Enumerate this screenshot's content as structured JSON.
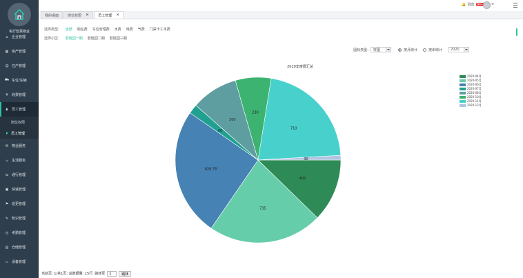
{
  "brand": {
    "title": "宅行智慧物业"
  },
  "nav": [
    {
      "label": "企业管理",
      "icon": "home-icon"
    },
    {
      "label": "房产管理",
      "icon": "building-icon"
    },
    {
      "label": "住户管理",
      "icon": "people-icon"
    },
    {
      "label": "车位/车辆",
      "icon": "car-icon"
    },
    {
      "label": "收费管理",
      "icon": "money-icon"
    },
    {
      "label": "员工管理",
      "icon": "user-icon",
      "active": true
    },
    {
      "label": "物业服务",
      "icon": "service-icon"
    },
    {
      "label": "生活服务",
      "icon": "life-icon"
    },
    {
      "label": "通行管理",
      "icon": "gate-icon"
    },
    {
      "label": "快递管理",
      "icon": "package-icon"
    },
    {
      "label": "巡更管理",
      "icon": "patrol-icon"
    },
    {
      "label": "知识管理",
      "icon": "book-icon"
    },
    {
      "label": "考勤管理",
      "icon": "clock-icon"
    },
    {
      "label": "仓储管理",
      "icon": "warehouse-icon"
    },
    {
      "label": "设备管理",
      "icon": "device-icon"
    }
  ],
  "subnav": [
    {
      "label": "岗位权限"
    },
    {
      "label": "员工管理",
      "active": true
    }
  ],
  "topbar": {
    "message": "消息",
    "badge": "99+"
  },
  "tabs": [
    {
      "label": "我的桌面",
      "closable": false
    },
    {
      "label": "岗位权限",
      "closable": true
    },
    {
      "label": "员工管理",
      "closable": true,
      "active": true
    }
  ],
  "filters": {
    "type_label": "选择类型:",
    "types": [
      "全部",
      "物业费",
      "车位管理费",
      "水费",
      "电费",
      "气费",
      "门禁卡工本费"
    ],
    "active_type": "全部",
    "community_label": "选择小区:",
    "communities": [
      "碧桂园一期",
      "碧桂园二期",
      "碧桂园三期"
    ],
    "active_community": "碧桂园一期"
  },
  "controls": {
    "chart_type_label": "图标类型:",
    "chart_type": "饼图",
    "radio_month": "按月统计",
    "radio_year": "按年统计",
    "radio_selected": "month",
    "year": "2020"
  },
  "chart_data": {
    "type": "pie",
    "title": "2020年度费汇总",
    "slices": [
      {
        "label": "2020-04月",
        "value": 405,
        "color": "#2e8b57"
      },
      {
        "label": "2020-05月",
        "value": 735,
        "color": "#66cdaa"
      },
      {
        "label": "2020-06月",
        "value": 826.78,
        "color": "#4682b4"
      },
      {
        "label": "2020-07月",
        "value": 60,
        "color": "#20a090"
      },
      {
        "label": "2020-08月",
        "value": 300,
        "color": "#5f9ea0"
      },
      {
        "label": "2020-10月",
        "value": 230,
        "color": "#3cb371"
      },
      {
        "label": "2020-11月",
        "value": 710,
        "color": "#48d1cc"
      },
      {
        "label": "2020-12月",
        "value": 30,
        "color": "#b0c4de"
      }
    ],
    "legend": [
      "2020-04月",
      "2020-05月",
      "2020-06月",
      "2020-07月",
      "2020-08月",
      "2020-10月",
      "2020-11月",
      "2020-12月"
    ],
    "legend_position": "top-right"
  },
  "footer": {
    "page_info": "当前页: 1/共1页; 总数据量: 15行",
    "jump_label": "跳转至",
    "jump_value": "1",
    "jump_button": "跳转"
  }
}
